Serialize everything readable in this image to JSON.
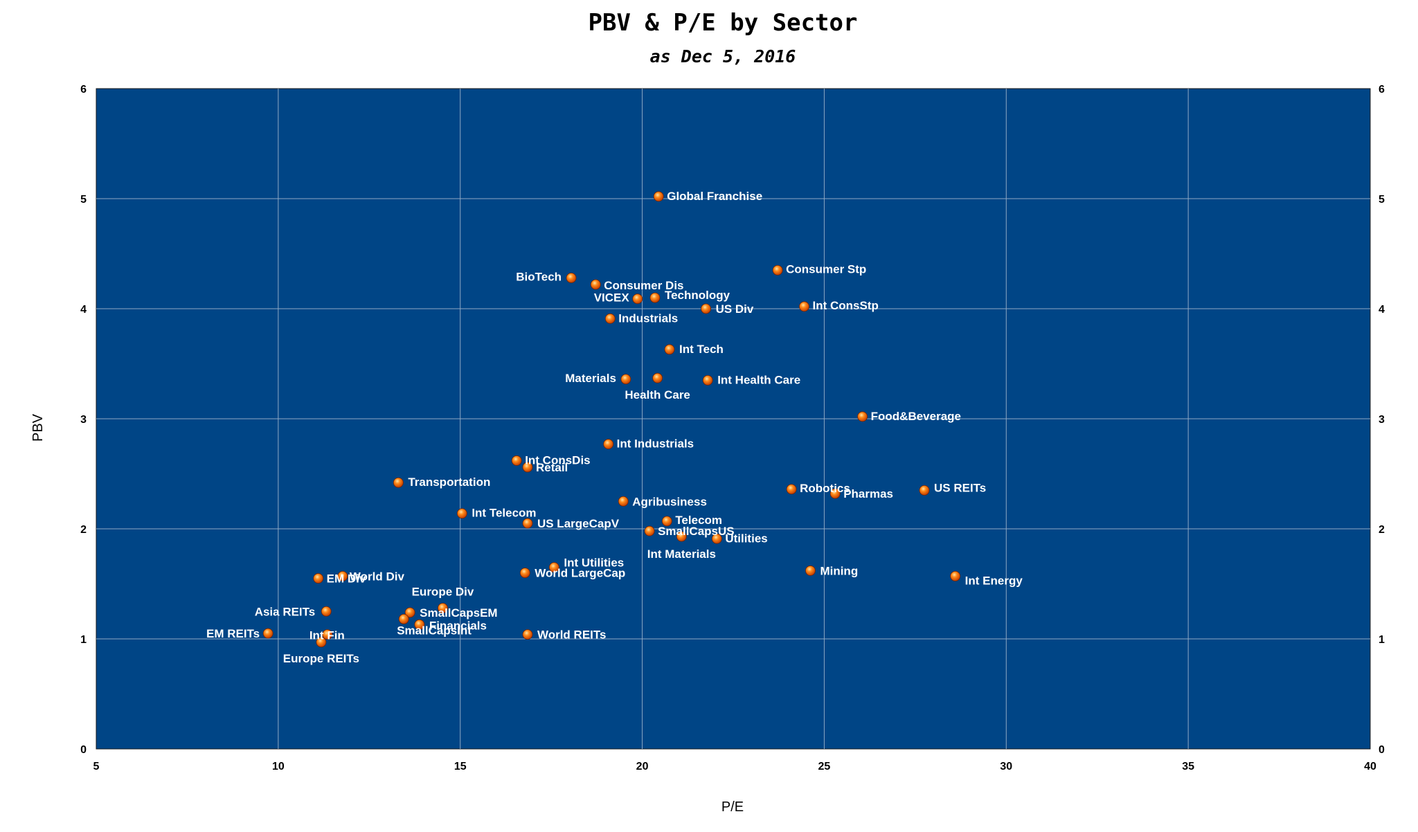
{
  "chart_data": {
    "type": "scatter",
    "title": "PBV & P/E by Sector",
    "subtitle": "as Dec 5, 2016",
    "xlabel": "P/E",
    "ylabel": "PBV",
    "xlim": [
      5,
      40
    ],
    "ylim": [
      0,
      6
    ],
    "x_ticks": [
      "5",
      "10",
      "15",
      "20",
      "25",
      "30",
      "35",
      "40"
    ],
    "y_ticks": [
      "0",
      "1",
      "2",
      "3",
      "4",
      "5",
      "6"
    ],
    "y_ticks_right": [
      "0",
      "1",
      "2",
      "3",
      "4",
      "5",
      "6"
    ],
    "grid": true,
    "plot_background": "#004586",
    "marker_color": "#ff6600",
    "label_color": "#ffffff",
    "points": [
      {
        "label": "Global Franchise",
        "x": 20.45,
        "y": 5.02
      },
      {
        "label": "Consumer Stp",
        "x": 23.72,
        "y": 4.35
      },
      {
        "label": "BioTech",
        "x": 18.05,
        "y": 4.28
      },
      {
        "label": "Consumer Dis",
        "x": 18.72,
        "y": 4.22
      },
      {
        "label": "VICEX",
        "x": 19.87,
        "y": 4.09
      },
      {
        "label": "Technology",
        "x": 20.35,
        "y": 4.1
      },
      {
        "label": "US Div",
        "x": 21.75,
        "y": 4.0
      },
      {
        "label": "Int ConsStp",
        "x": 24.45,
        "y": 4.02
      },
      {
        "label": "Industrials",
        "x": 19.12,
        "y": 3.91
      },
      {
        "label": "Int Tech",
        "x": 20.75,
        "y": 3.63
      },
      {
        "label": "Materials",
        "x": 19.55,
        "y": 3.36
      },
      {
        "label": "Health Care",
        "x": 20.42,
        "y": 3.37
      },
      {
        "label": "Int Health Care",
        "x": 21.8,
        "y": 3.35
      },
      {
        "label": "Food&Beverage",
        "x": 26.05,
        "y": 3.02
      },
      {
        "label": "Int Industrials",
        "x": 19.07,
        "y": 2.77
      },
      {
        "label": "Int  ConsDis",
        "x": 16.55,
        "y": 2.62
      },
      {
        "label": "Retail",
        "x": 16.85,
        "y": 2.56
      },
      {
        "label": "Transportation",
        "x": 13.3,
        "y": 2.42
      },
      {
        "label": "Robotics",
        "x": 24.1,
        "y": 2.36
      },
      {
        "label": "Pharmas",
        "x": 25.3,
        "y": 2.32
      },
      {
        "label": "US REITs",
        "x": 27.75,
        "y": 2.35
      },
      {
        "label": "Agribusiness",
        "x": 19.48,
        "y": 2.25
      },
      {
        "label": "Int Telecom",
        "x": 15.05,
        "y": 2.14
      },
      {
        "label": "US LargeCapV",
        "x": 16.85,
        "y": 2.05
      },
      {
        "label": "Telecom",
        "x": 20.68,
        "y": 2.07
      },
      {
        "label": "SmallCapsUS",
        "x": 20.2,
        "y": 1.98
      },
      {
        "label": "Int Materials",
        "x": 21.08,
        "y": 1.93
      },
      {
        "label": "Utilities",
        "x": 22.05,
        "y": 1.91
      },
      {
        "label": "Int Utilities",
        "x": 17.58,
        "y": 1.65
      },
      {
        "label": "World LargeCap",
        "x": 16.78,
        "y": 1.6
      },
      {
        "label": "Mining",
        "x": 24.62,
        "y": 1.62
      },
      {
        "label": "Int Energy",
        "x": 28.6,
        "y": 1.57
      },
      {
        "label": "EM Div",
        "x": 11.1,
        "y": 1.55
      },
      {
        "label": "World Div",
        "x": 11.77,
        "y": 1.57
      },
      {
        "label": "Europe Div",
        "x": 14.52,
        "y": 1.28
      },
      {
        "label": "Asia REITs",
        "x": 11.32,
        "y": 1.25
      },
      {
        "label": "SmallCapsEM",
        "x": 13.62,
        "y": 1.24
      },
      {
        "label": "SmallCapsInt",
        "x": 13.45,
        "y": 1.18
      },
      {
        "label": "Financials",
        "x": 13.88,
        "y": 1.13
      },
      {
        "label": "EM REITs",
        "x": 9.72,
        "y": 1.05
      },
      {
        "label": "Int Fin",
        "x": 11.35,
        "y": 1.04
      },
      {
        "label": "Europe REITs",
        "x": 11.18,
        "y": 0.97
      },
      {
        "label": "World REITs",
        "x": 16.85,
        "y": 1.04
      }
    ]
  }
}
